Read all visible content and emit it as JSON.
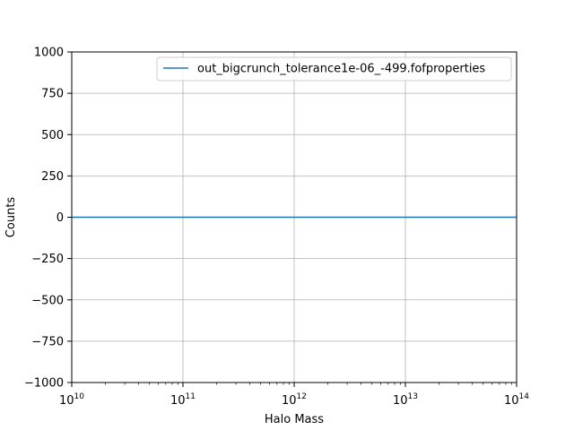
{
  "chart_data": {
    "type": "line",
    "title": "",
    "xlabel": "Halo Mass",
    "ylabel": "Counts",
    "xscale": "log",
    "xlim": [
      10000000000.0,
      100000000000000.0
    ],
    "ylim": [
      -1000,
      1000
    ],
    "x_ticks": [
      10000000000.0,
      100000000000.0,
      1000000000000.0,
      10000000000000.0,
      100000000000000.0
    ],
    "x_tick_labels": [
      {
        "base": "10",
        "exp": "10"
      },
      {
        "base": "10",
        "exp": "11"
      },
      {
        "base": "10",
        "exp": "12"
      },
      {
        "base": "10",
        "exp": "13"
      },
      {
        "base": "10",
        "exp": "14"
      }
    ],
    "y_ticks": [
      -1000,
      -750,
      -500,
      -250,
      0,
      250,
      500,
      750,
      1000
    ],
    "y_tick_labels": [
      "−1000",
      "−750",
      "−500",
      "−250",
      "0",
      "250",
      "500",
      "750",
      "1000"
    ],
    "grid": true,
    "legend_position": "top-right",
    "series": [
      {
        "name": "out_bigcrunch_tolerance1e-06_-499.fofproperties",
        "color": "#1f77b4",
        "x": [
          10000000000.0,
          100000000000000.0
        ],
        "y": [
          0,
          0
        ]
      }
    ]
  }
}
